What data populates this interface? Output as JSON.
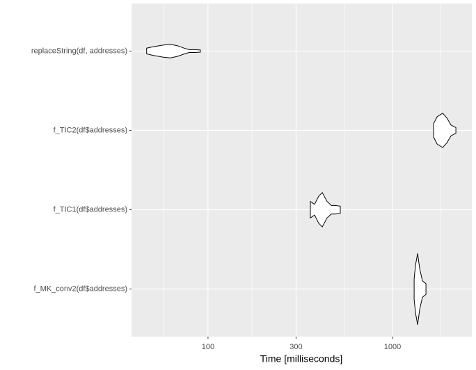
{
  "chart_data": {
    "type": "violin",
    "x_label": "Time [milliseconds]",
    "log_x": true,
    "grid": true,
    "panel_color": "#ebebeb",
    "grid_color": "#ffffff",
    "color": "#000000",
    "fill": "#ffffff",
    "xlim": [
      38.5,
      2690
    ],
    "xticks": [
      100,
      300,
      1000
    ],
    "categories": [
      "replaceString(df, addresses)",
      "f_TIC2(df$addresses)",
      "f_TIC1(df$addresses)",
      "f_MK_conv2(df$addresses)"
    ],
    "violins": [
      {
        "x": [
          46.5,
          50.3,
          57.3,
          62.6,
          68.2,
          74.4,
          79.1,
          84.8,
          90.9
        ],
        "density": [
          0.08,
          0.12,
          0.17,
          0.19,
          0.15,
          0.08,
          0.04,
          0.04,
          0.03
        ]
      },
      {
        "x": [
          1670,
          1744,
          1870,
          1970,
          2075,
          2205
        ],
        "density": [
          0.19,
          0.38,
          0.48,
          0.35,
          0.15,
          0.08
        ]
      },
      {
        "x": [
          358.7,
          378,
          398,
          416,
          442,
          466,
          490,
          521
        ],
        "density": [
          0.23,
          0.15,
          0.38,
          0.48,
          0.23,
          0.12,
          0.12,
          0.1
        ]
      },
      {
        "x": [
          1309,
          1332,
          1367,
          1403,
          1452,
          1518
        ],
        "density": [
          0.29,
          0.67,
          1.0,
          0.58,
          0.23,
          0.15
        ]
      }
    ]
  }
}
